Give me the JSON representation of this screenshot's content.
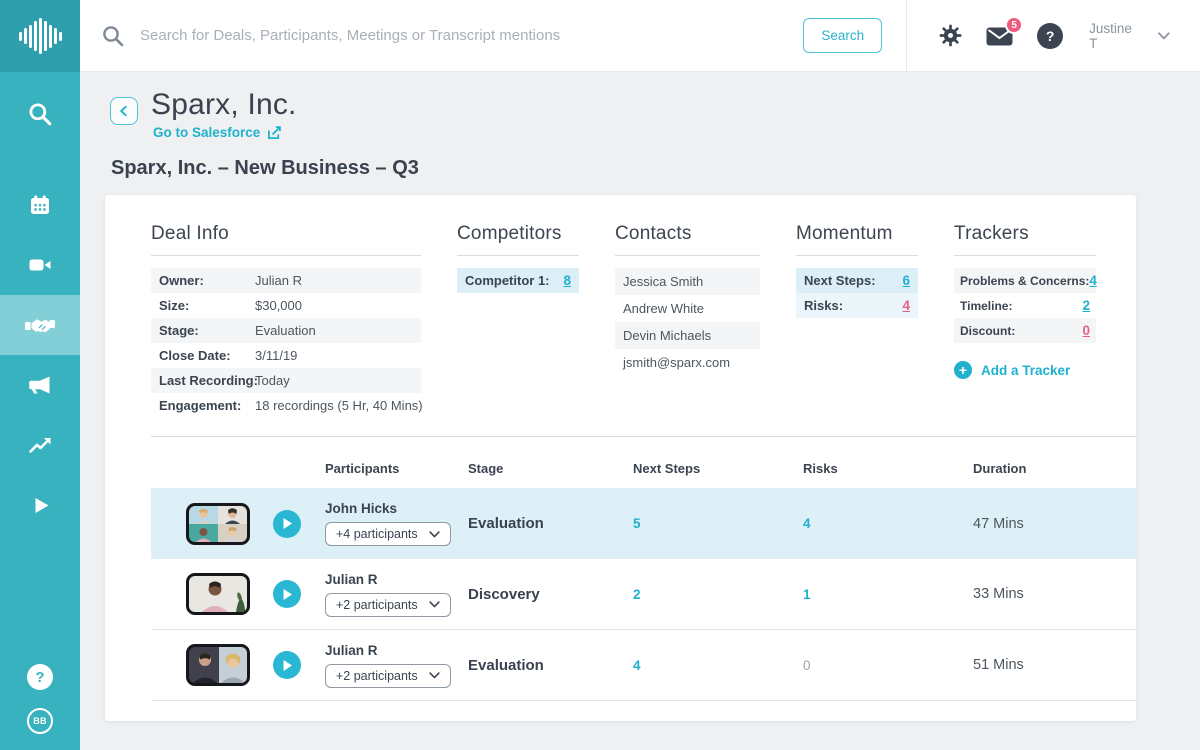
{
  "theme": {
    "sidebar_color": "#38b2be",
    "sidebar_logo_color": "#2f9fad",
    "accent_teal": "#1fb1cd",
    "accent_pink": "#e85f84",
    "text_dark": "#3b4450",
    "row_highlight_blue": "#ddeff7",
    "row_stripe_gray": "#f3f5f6"
  },
  "sidebar": {
    "icons": [
      "waveform-logo",
      "search",
      "calendar",
      "video-camera",
      "handshake",
      "megaphone",
      "trend-chart",
      "play"
    ],
    "active_item": "handshake",
    "help_glyph": "?",
    "avatar_initials": "BB"
  },
  "topbar": {
    "search_placeholder": "Search for Deals, Participants, Meetings or Transcript mentions",
    "search_button": "Search",
    "icons": [
      "gear",
      "envelope",
      "question-mark"
    ],
    "mail_badge": "5",
    "help_glyph": "?",
    "user_name": "Justine T"
  },
  "page": {
    "company": "Sparx, Inc.",
    "crm_link": "Go to Salesforce",
    "deal_title": "Sparx, Inc. – New Business – Q3"
  },
  "deal_info": {
    "title": "Deal Info",
    "rows": [
      {
        "label": "Owner:",
        "value": "Julian R"
      },
      {
        "label": "Size:",
        "value": "$30,000"
      },
      {
        "label": "Stage:",
        "value": "Evaluation"
      },
      {
        "label": "Close Date:",
        "value": "3/11/19"
      },
      {
        "label": "Last Recording:",
        "value": "Today"
      },
      {
        "label": "Engagement:",
        "value": "18 recordings (5 Hr, 40 Mins)"
      }
    ]
  },
  "competitors": {
    "title": "Competitors",
    "rows": [
      {
        "label": "Competitor 1:",
        "value": "8",
        "color": "teal",
        "bg": "blue"
      }
    ]
  },
  "contacts": {
    "title": "Contacts",
    "names": [
      "Jessica Smith",
      "Andrew White",
      "Devin Michaels",
      "jsmith@sparx.com"
    ]
  },
  "momentum": {
    "title": "Momentum",
    "rows": [
      {
        "label": "Next Steps:",
        "value": "6",
        "color": "teal",
        "bg": "blue"
      },
      {
        "label": "Risks:",
        "value": "4",
        "color": "pink",
        "bg": "blue-light"
      }
    ]
  },
  "trackers": {
    "title": "Trackers",
    "rows": [
      {
        "label": "Problems & Concerns:",
        "value": "4",
        "color": "teal"
      },
      {
        "label": "Timeline:",
        "value": "2",
        "color": "teal"
      },
      {
        "label": "Discount:",
        "value": "0",
        "color": "pink"
      }
    ],
    "add_label": "Add a Tracker",
    "add_glyph": "+"
  },
  "meetings_table": {
    "columns": [
      "Participants",
      "Stage",
      "Next Steps",
      "Risks",
      "Duration"
    ],
    "rows": [
      {
        "owner": "John Hicks",
        "participants": "+4 participants",
        "stage": "Evaluation",
        "next_steps": "5",
        "risks": "4",
        "duration": "47 Mins",
        "highlighted": true,
        "thumb": "grid-4"
      },
      {
        "owner": "Julian R",
        "participants": "+2 participants",
        "stage": "Discovery",
        "next_steps": "2",
        "risks": "1",
        "duration": "33 Mins",
        "highlighted": false,
        "thumb": "single"
      },
      {
        "owner": "Julian R",
        "participants": "+2 participants",
        "stage": "Evaluation",
        "next_steps": "4",
        "risks": "0",
        "duration": "51 Mins",
        "highlighted": false,
        "thumb": "duo"
      }
    ]
  }
}
